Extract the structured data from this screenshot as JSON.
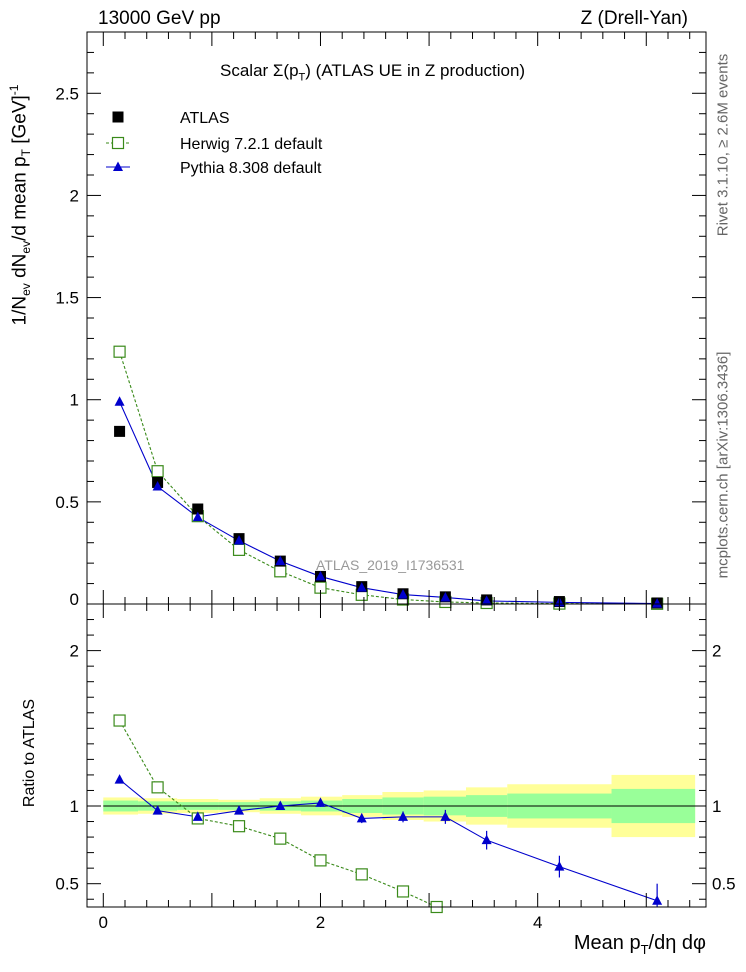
{
  "header": {
    "left": "13000 GeV pp",
    "right": "Z (Drell-Yan)"
  },
  "side_labels": {
    "rivet": "Rivet 3.1.10, ≥ 2.6M events",
    "mcplots": "mcplots.cern.ch [arXiv:1306.3436]"
  },
  "chart_data": [
    {
      "type": "scatter",
      "panel": "main",
      "title": "Scalar Σ(p_T) (ATLAS UE in Z production)",
      "title_parts": [
        "Scalar Σ(p",
        "T",
        ") (ATLAS UE in Z production)"
      ],
      "ylabel": "1/N_ev dN_ev/d mean p_T [GeV]^-1",
      "ylabel_parts": [
        "1/N",
        "ev",
        " dN",
        "ev",
        "/d mean p",
        "T",
        " [GeV]",
        "-1"
      ],
      "watermark": "ATLAS_2019_I1736531",
      "xlim": [
        -0.15,
        5.55
      ],
      "ylim": [
        0,
        2.8
      ],
      "yticks": [
        0,
        0.5,
        1,
        1.5,
        2,
        2.5
      ],
      "ytick_labels": [
        "0",
        "0.5",
        "1",
        "1.5",
        "2",
        "2.5"
      ],
      "legend": {
        "position": "top-left"
      },
      "series": [
        {
          "name": "ATLAS",
          "style": "marker-square-filled",
          "color": "#000000",
          "x": [
            0.15,
            0.5,
            0.87,
            1.25,
            1.63,
            2.0,
            2.38,
            2.76,
            3.15,
            3.53,
            4.2,
            5.1
          ],
          "y": [
            0.845,
            0.595,
            0.465,
            0.32,
            0.21,
            0.135,
            0.085,
            0.05,
            0.035,
            0.02,
            0.012,
            0.005
          ]
        },
        {
          "name": "Herwig 7.2.1 default",
          "style": "marker-square-open-dashed",
          "color": "#3a8a1a",
          "x": [
            0.15,
            0.5,
            0.87,
            1.25,
            1.63,
            2.0,
            2.38,
            2.76,
            3.15,
            3.53,
            4.2,
            5.1
          ],
          "y": [
            1.235,
            0.65,
            0.43,
            0.265,
            0.16,
            0.08,
            0.045,
            0.022,
            0.01,
            0.005,
            0.002,
            0.001
          ]
        },
        {
          "name": "Pythia 8.308 default",
          "style": "marker-triangle-line",
          "color": "#0000cc",
          "x": [
            0.15,
            0.5,
            0.87,
            1.25,
            1.63,
            2.0,
            2.38,
            2.76,
            3.15,
            3.53,
            4.2,
            5.1
          ],
          "y": [
            0.99,
            0.575,
            0.425,
            0.31,
            0.21,
            0.135,
            0.08,
            0.046,
            0.032,
            0.015,
            0.008,
            0.002
          ]
        }
      ]
    },
    {
      "type": "scatter",
      "panel": "ratio",
      "ylabel": "Ratio to ATLAS",
      "xlabel": "Mean p_T/dη dφ",
      "xlabel_parts": [
        "Mean p",
        "T",
        "/dη dφ"
      ],
      "xlim": [
        -0.15,
        5.55
      ],
      "ylim": [
        0.35,
        2.3
      ],
      "xticks": [
        0,
        2,
        4
      ],
      "xtick_labels": [
        "0",
        "2",
        "4"
      ],
      "yticks": [
        0.5,
        1,
        2
      ],
      "ytick_labels": [
        "0.5",
        "1",
        "2"
      ],
      "bands": {
        "edges": [
          0.0,
          0.32,
          0.68,
          1.06,
          1.44,
          1.82,
          2.2,
          2.57,
          2.95,
          3.34,
          3.72,
          4.68,
          5.45
        ],
        "yellow": [
          0.055,
          0.05,
          0.045,
          0.04,
          0.05,
          0.06,
          0.07,
          0.09,
          0.1,
          0.12,
          0.14,
          0.2
        ],
        "green": [
          0.035,
          0.03,
          0.025,
          0.025,
          0.03,
          0.035,
          0.045,
          0.055,
          0.06,
          0.07,
          0.08,
          0.11
        ]
      },
      "series": [
        {
          "name": "Herwig 7.2.1 default",
          "color": "#3a8a1a",
          "x": [
            0.15,
            0.5,
            0.87,
            1.25,
            1.63,
            2.0,
            2.38,
            2.76,
            3.07
          ],
          "y": [
            1.55,
            1.12,
            0.92,
            0.87,
            0.79,
            0.65,
            0.56,
            0.45,
            0.35
          ],
          "err": [
            0,
            0,
            0,
            0,
            0,
            0,
            0.02,
            0.03,
            0
          ]
        },
        {
          "name": "Pythia 8.308 default",
          "color": "#0000cc",
          "x": [
            0.15,
            0.5,
            0.87,
            1.25,
            1.63,
            2.0,
            2.38,
            2.76,
            3.15,
            3.53,
            4.2,
            5.1
          ],
          "y": [
            1.17,
            0.97,
            0.93,
            0.97,
            1.0,
            1.02,
            0.92,
            0.93,
            0.93,
            0.78,
            0.61,
            0.39
          ],
          "err": [
            0,
            0,
            0,
            0,
            0.02,
            0.025,
            0.03,
            0.035,
            0.045,
            0.06,
            0.07,
            0.11
          ]
        }
      ]
    }
  ]
}
